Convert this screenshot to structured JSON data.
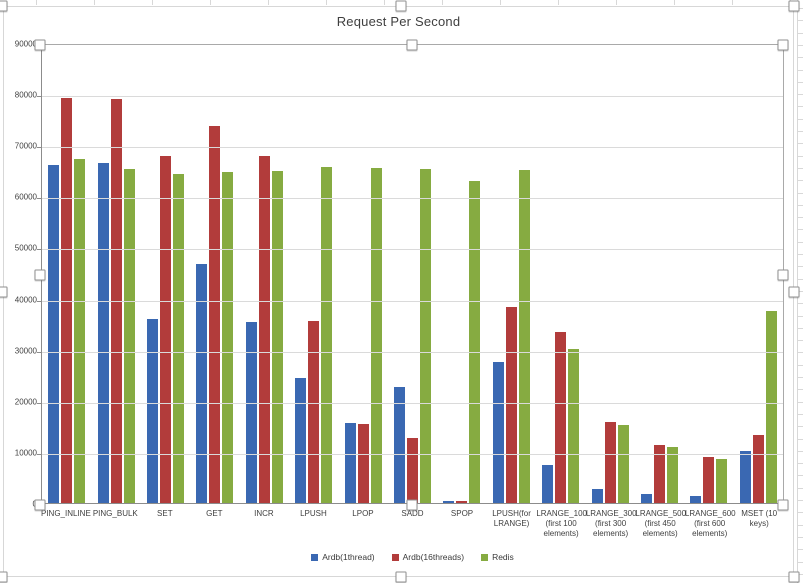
{
  "chart_data": {
    "type": "bar",
    "title": "Request Per Second",
    "categories": [
      "PING_INLINE",
      "PING_BULK",
      "SET",
      "GET",
      "INCR",
      "LPUSH",
      "LPOP",
      "SADD",
      "SPOP",
      "LPUSH(for LRANGE)",
      "LRANGE_100 (first 100 elements)",
      "LRANGE_300 (first 300 elements)",
      "LRANGE_500 (first 450 elements)",
      "LRANGE_600 (first 600 elements)",
      "MSET (10 keys)"
    ],
    "series": [
      {
        "name": "Ardb(1thread)",
        "color": "#3a68b2",
        "values": [
          66100,
          66500,
          36100,
          46700,
          35500,
          24500,
          15700,
          22700,
          300,
          27600,
          7400,
          2800,
          1700,
          1300,
          10100
        ]
      },
      {
        "name": "Ardb(16threads)",
        "color": "#b23c3b",
        "values": [
          79300,
          79100,
          67800,
          73800,
          67900,
          35600,
          15400,
          12700,
          350,
          38400,
          33400,
          15900,
          11400,
          9000,
          13300
        ]
      },
      {
        "name": "Redis",
        "color": "#86ab41",
        "values": [
          67400,
          65400,
          64400,
          64800,
          65000,
          65800,
          65600,
          65400,
          63000,
          65100,
          30100,
          15200,
          11000,
          8700,
          37500
        ]
      }
    ],
    "xlabel": "",
    "ylabel": "",
    "ylim": [
      0,
      90000
    ],
    "yticks": [
      0,
      10000,
      20000,
      30000,
      40000,
      50000,
      60000,
      70000,
      80000,
      90000
    ],
    "grid": true,
    "legend_position": "bottom"
  }
}
